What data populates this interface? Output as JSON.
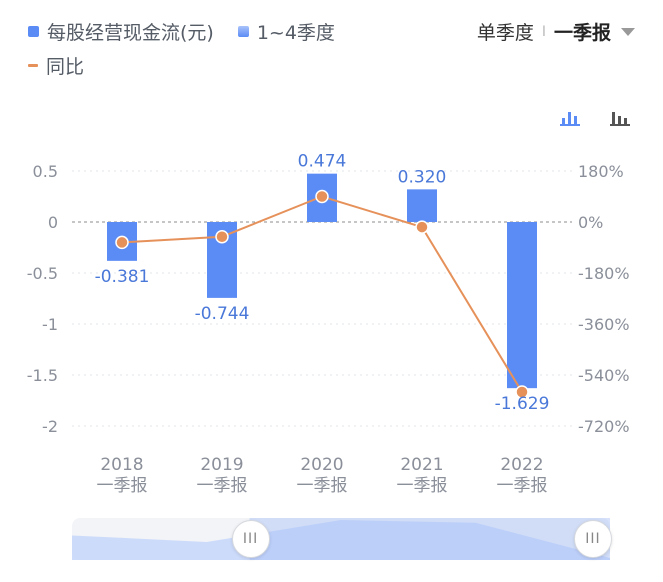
{
  "legend": {
    "flow": "每股经营现金流(元)",
    "quarters": "1~4季度",
    "yoy": "同比"
  },
  "period": {
    "mode": "单季度",
    "separator": "I",
    "selected": "一季报"
  },
  "colors": {
    "bar": "#5b8cf5",
    "line": "#e6915a",
    "axis_text": "#8a8f99",
    "label": "#4a78d9"
  },
  "toolbar": {
    "left_icon": "bar-chart-icon-active",
    "right_icon": "bar-chart-icon"
  },
  "slider": {
    "start": 0.33,
    "end": 1.0,
    "handle_label": "III"
  },
  "chart_data": {
    "type": "bar",
    "categories": [
      "2018\n一季报",
      "2019\n一季报",
      "2020\n一季报",
      "2021\n一季报",
      "2022\n一季报"
    ],
    "category_years": [
      "2018",
      "2019",
      "2020",
      "2021",
      "2022"
    ],
    "category_sub": [
      "一季报",
      "一季报",
      "一季报",
      "一季报",
      "一季报"
    ],
    "series": [
      {
        "name": "每股经营现金流(元)",
        "type": "bar",
        "axis": "left",
        "values": [
          -0.381,
          -0.744,
          0.474,
          0.32,
          -1.629
        ],
        "labels": [
          "-0.381",
          "-0.744",
          "0.474",
          "0.320",
          "-1.629"
        ]
      },
      {
        "name": "同比",
        "type": "line",
        "axis": "right",
        "values": [
          -72,
          -52,
          90,
          -18,
          -600
        ]
      }
    ],
    "y_left": {
      "ticks": [
        0.5,
        0,
        -0.5,
        -1,
        -1.5,
        -2
      ],
      "tick_labels": [
        "0.5",
        "0",
        "-0.5",
        "-1",
        "-1.5",
        "-2"
      ],
      "ylim": [
        -2,
        0.5
      ]
    },
    "y_right": {
      "ticks": [
        180,
        0,
        -180,
        -360,
        -540,
        -720
      ],
      "tick_labels": [
        "180%",
        "0%",
        "-180%",
        "-360%",
        "-540%",
        "-720%"
      ],
      "ylim": [
        -720,
        180
      ]
    },
    "grid": true,
    "legend_position": "top-left"
  }
}
